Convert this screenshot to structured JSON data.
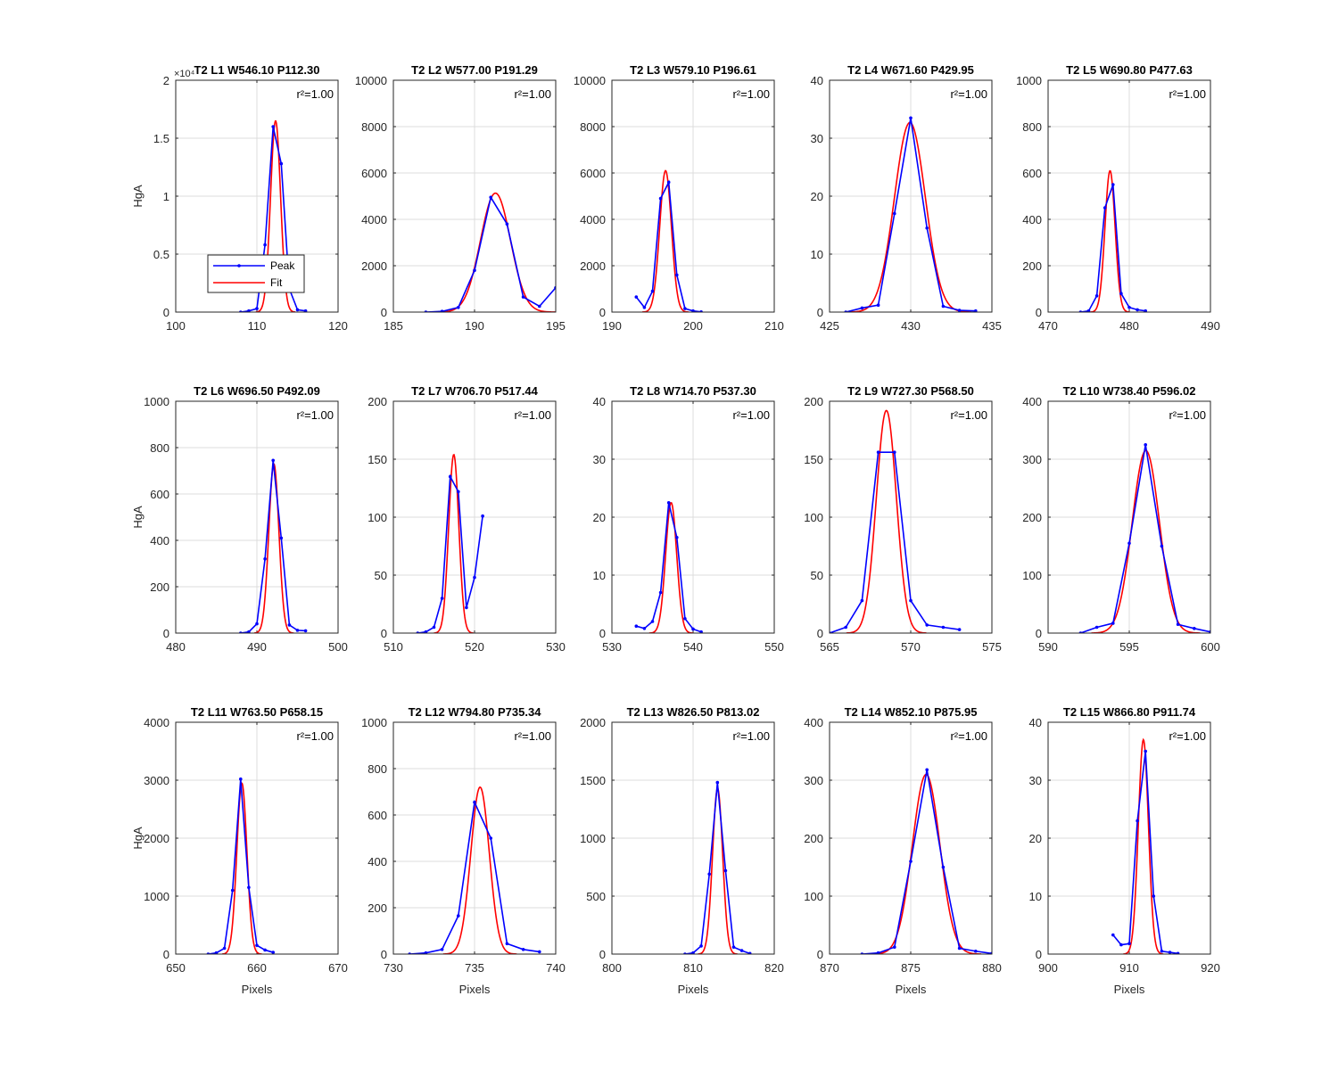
{
  "figure": {
    "background": "#ffffff"
  },
  "colors": {
    "peak": "#0000ff",
    "fit": "#ff0000",
    "grid": "#dcdcdc",
    "axes": "#262626"
  },
  "legend": {
    "entries": [
      "Peak",
      "Fit"
    ],
    "placement": "lower-left",
    "subplot": 0
  },
  "chart_data": [
    {
      "type": "line",
      "title": "T2 L1 W546.10 P112.30",
      "r2": "r²=1.00",
      "xlim": [
        100,
        120
      ],
      "ylim": [
        0,
        2
      ],
      "xticks": [
        100,
        110,
        120
      ],
      "yticks": [
        0,
        0.5,
        1,
        1.5,
        2
      ],
      "ytick_labels": [
        "0",
        "0.5",
        "1",
        "1.5",
        "2"
      ],
      "y_exponent": "×10⁴",
      "ylabel": "HgA",
      "xlabel": "",
      "peak": {
        "x": [
          108,
          109,
          110,
          111,
          112,
          113,
          114,
          115,
          116
        ],
        "y": [
          0,
          0.01,
          0.03,
          0.58,
          1.6,
          1.28,
          0.2,
          0.02,
          0.01
        ]
      },
      "fit": {
        "mu": 112.3,
        "sigma": 0.62,
        "amp": 1.65
      }
    },
    {
      "type": "line",
      "title": "T2 L2 W577.00 P191.29",
      "r2": "r²=1.00",
      "xlim": [
        185,
        195
      ],
      "ylim": [
        0,
        10000
      ],
      "xticks": [
        185,
        190,
        195
      ],
      "yticks": [
        0,
        2000,
        4000,
        6000,
        8000,
        10000
      ],
      "ytick_labels": [
        "0",
        "2000",
        "4000",
        "6000",
        "8000",
        "10000"
      ],
      "ylabel": "",
      "xlabel": "",
      "peak": {
        "x": [
          187,
          188,
          189,
          190,
          191,
          192,
          193,
          194,
          195
        ],
        "y": [
          0,
          30,
          200,
          1800,
          4950,
          3800,
          650,
          250,
          1050
        ]
      },
      "fit": {
        "mu": 191.29,
        "sigma": 0.92,
        "amp": 5130
      }
    },
    {
      "type": "line",
      "title": "T2 L3 W579.10 P196.61",
      "r2": "r²=1.00",
      "xlim": [
        190,
        210
      ],
      "ylim": [
        0,
        10000
      ],
      "xticks": [
        190,
        200,
        210
      ],
      "yticks": [
        0,
        2000,
        4000,
        6000,
        8000,
        10000
      ],
      "ytick_labels": [
        "0",
        "2000",
        "4000",
        "6000",
        "8000",
        "10000"
      ],
      "ylabel": "",
      "xlabel": "",
      "peak": {
        "x": [
          193,
          194,
          195,
          196,
          197,
          198,
          199,
          200,
          201
        ],
        "y": [
          650,
          200,
          900,
          4900,
          5600,
          1600,
          150,
          50,
          10
        ]
      },
      "fit": {
        "mu": 196.61,
        "sigma": 0.72,
        "amp": 6100
      }
    },
    {
      "type": "line",
      "title": "T2 L4 W671.60 P429.95",
      "r2": "r²=1.00",
      "xlim": [
        425,
        435
      ],
      "ylim": [
        0,
        40
      ],
      "xticks": [
        425,
        430,
        435
      ],
      "yticks": [
        0,
        10,
        20,
        30,
        40
      ],
      "ytick_labels": [
        "0",
        "10",
        "20",
        "30",
        "40"
      ],
      "ylabel": "",
      "xlabel": "",
      "peak": {
        "x": [
          426,
          427,
          428,
          429,
          430,
          431,
          432,
          433,
          434
        ],
        "y": [
          0,
          0.7,
          1.2,
          17,
          33.5,
          14.5,
          1.0,
          0.3,
          0.2
        ]
      },
      "fit": {
        "mu": 429.95,
        "sigma": 0.95,
        "amp": 32.7
      }
    },
    {
      "type": "line",
      "title": "T2 L5 W690.80 P477.63",
      "r2": "r²=1.00",
      "xlim": [
        470,
        490
      ],
      "ylim": [
        0,
        1000
      ],
      "xticks": [
        470,
        480,
        490
      ],
      "yticks": [
        0,
        200,
        400,
        600,
        800,
        1000
      ],
      "ytick_labels": [
        "0",
        "200",
        "400",
        "600",
        "800",
        "1000"
      ],
      "ylabel": "",
      "xlabel": "",
      "peak": {
        "x": [
          474,
          475,
          476,
          477,
          478,
          479,
          480,
          481,
          482
        ],
        "y": [
          0,
          5,
          70,
          450,
          550,
          80,
          20,
          10,
          5
        ]
      },
      "fit": {
        "mu": 477.63,
        "sigma": 0.62,
        "amp": 610
      }
    },
    {
      "type": "line",
      "title": "T2 L6 W696.50 P492.09",
      "r2": "r²=1.00",
      "xlim": [
        480,
        500
      ],
      "ylim": [
        0,
        1000
      ],
      "xticks": [
        480,
        490,
        500
      ],
      "yticks": [
        0,
        200,
        400,
        600,
        800,
        1000
      ],
      "ytick_labels": [
        "0",
        "200",
        "400",
        "600",
        "800",
        "1000"
      ],
      "ylabel": "HgA",
      "xlabel": "",
      "peak": {
        "x": [
          488,
          489,
          490,
          491,
          492,
          493,
          494,
          495,
          496
        ],
        "y": [
          0,
          5,
          40,
          320,
          745,
          410,
          35,
          12,
          10
        ]
      },
      "fit": {
        "mu": 492.09,
        "sigma": 0.62,
        "amp": 730
      }
    },
    {
      "type": "line",
      "title": "T2 L7 W706.70 P517.44",
      "r2": "r²=1.00",
      "xlim": [
        510,
        530
      ],
      "ylim": [
        0,
        200
      ],
      "xticks": [
        510,
        520,
        530
      ],
      "yticks": [
        0,
        50,
        100,
        150,
        200
      ],
      "ytick_labels": [
        "0",
        "50",
        "100",
        "150",
        "200"
      ],
      "ylabel": "",
      "xlabel": "",
      "peak": {
        "x": [
          513,
          514,
          515,
          516,
          517,
          518,
          519,
          520,
          521
        ],
        "y": [
          0,
          1,
          5,
          30,
          135,
          122,
          22,
          48,
          101
        ]
      },
      "fit": {
        "mu": 517.44,
        "sigma": 0.62,
        "amp": 154
      }
    },
    {
      "type": "line",
      "title": "T2 L8 W714.70 P537.30",
      "r2": "r²=1.00",
      "xlim": [
        530,
        550
      ],
      "ylim": [
        0,
        40
      ],
      "xticks": [
        530,
        540,
        550
      ],
      "yticks": [
        0,
        10,
        20,
        30,
        40
      ],
      "ytick_labels": [
        "0",
        "10",
        "20",
        "30",
        "40"
      ],
      "ylabel": "",
      "xlabel": "",
      "peak": {
        "x": [
          533,
          534,
          535,
          536,
          537,
          538,
          539,
          540,
          541
        ],
        "y": [
          1.2,
          0.8,
          2,
          7,
          22.5,
          16.5,
          2.5,
          0.7,
          0.2
        ]
      },
      "fit": {
        "mu": 537.3,
        "sigma": 0.68,
        "amp": 22.5
      }
    },
    {
      "type": "line",
      "title": "T2 L9 W727.30 P568.50",
      "r2": "r²=1.00",
      "xlim": [
        565,
        575
      ],
      "ylim": [
        0,
        200
      ],
      "xticks": [
        565,
        570,
        575
      ],
      "yticks": [
        0,
        50,
        100,
        150,
        200
      ],
      "ytick_labels": [
        "0",
        "50",
        "100",
        "150",
        "200"
      ],
      "ylabel": "",
      "xlabel": "",
      "peak": {
        "x": [
          565,
          566,
          567,
          568,
          569,
          570,
          571,
          572,
          573
        ],
        "y": [
          0,
          5,
          28,
          156,
          156,
          28,
          7,
          5,
          3
        ]
      },
      "fit": {
        "mu": 568.5,
        "sigma": 0.62,
        "amp": 192
      }
    },
    {
      "type": "line",
      "title": "T2 L10 W738.40 P596.02",
      "r2": "r²=1.00",
      "xlim": [
        590,
        600
      ],
      "ylim": [
        0,
        400
      ],
      "xticks": [
        590,
        595,
        600
      ],
      "yticks": [
        0,
        100,
        200,
        300,
        400
      ],
      "ytick_labels": [
        "0",
        "100",
        "200",
        "300",
        "400"
      ],
      "ylabel": "",
      "xlabel": "",
      "peak": {
        "x": [
          592,
          593,
          594,
          595,
          596,
          597,
          598,
          599,
          600
        ],
        "y": [
          0,
          10,
          17,
          155,
          325,
          150,
          15,
          8,
          2
        ]
      },
      "fit": {
        "mu": 596.02,
        "sigma": 0.84,
        "amp": 315
      }
    },
    {
      "type": "line",
      "title": "T2 L11 W763.50 P658.15",
      "r2": "r²=1.00",
      "xlim": [
        650,
        670
      ],
      "ylim": [
        0,
        4000
      ],
      "xticks": [
        650,
        660,
        670
      ],
      "yticks": [
        0,
        1000,
        2000,
        3000,
        4000
      ],
      "ytick_labels": [
        "0",
        "1000",
        "2000",
        "3000",
        "4000"
      ],
      "ylabel": "HgA",
      "xlabel": "Pixels",
      "peak": {
        "x": [
          654,
          655,
          656,
          657,
          658,
          659,
          660,
          661,
          662
        ],
        "y": [
          0,
          20,
          100,
          1100,
          3020,
          1150,
          150,
          70,
          30
        ]
      },
      "fit": {
        "mu": 658.15,
        "sigma": 0.62,
        "amp": 2950
      }
    },
    {
      "type": "line",
      "title": "T2 L12 W794.80 P735.34",
      "r2": "r²=1.00",
      "xlim": [
        730,
        740
      ],
      "ylim": [
        0,
        1000
      ],
      "xticks": [
        730,
        735,
        740
      ],
      "yticks": [
        0,
        200,
        400,
        600,
        800,
        1000
      ],
      "ytick_labels": [
        "0",
        "200",
        "400",
        "600",
        "800",
        "1000"
      ],
      "ylabel": "",
      "xlabel": "Pixels",
      "peak": {
        "x": [
          731,
          732,
          733,
          734,
          735,
          736,
          737,
          738,
          739
        ],
        "y": [
          0,
          5,
          20,
          165,
          655,
          500,
          45,
          20,
          10
        ]
      },
      "fit": {
        "mu": 735.34,
        "sigma": 0.57,
        "amp": 720
      }
    },
    {
      "type": "line",
      "title": "T2 L13 W826.50 P813.02",
      "r2": "r²=1.00",
      "xlim": [
        800,
        820
      ],
      "ylim": [
        0,
        2000
      ],
      "xticks": [
        800,
        810,
        820
      ],
      "yticks": [
        0,
        500,
        1000,
        1500,
        2000
      ],
      "ytick_labels": [
        "0",
        "500",
        "1000",
        "1500",
        "2000"
      ],
      "ylabel": "",
      "xlabel": "Pixels",
      "peak": {
        "x": [
          809,
          810,
          811,
          812,
          813,
          814,
          815,
          816,
          817
        ],
        "y": [
          0,
          10,
          70,
          690,
          1480,
          720,
          60,
          30,
          5
        ]
      },
      "fit": {
        "mu": 813.02,
        "sigma": 0.62,
        "amp": 1430
      }
    },
    {
      "type": "line",
      "title": "T2 L14 W852.10 P875.95",
      "r2": "r²=1.00",
      "xlim": [
        870,
        880
      ],
      "ylim": [
        0,
        400
      ],
      "xticks": [
        870,
        875,
        880
      ],
      "yticks": [
        0,
        100,
        200,
        300,
        400
      ],
      "ytick_labels": [
        "0",
        "100",
        "200",
        "300",
        "400"
      ],
      "ylabel": "",
      "xlabel": "Pixels",
      "peak": {
        "x": [
          872,
          873,
          874,
          875,
          876,
          877,
          878,
          879,
          880
        ],
        "y": [
          0,
          2,
          12,
          160,
          318,
          150,
          10,
          5,
          1
        ]
      },
      "fit": {
        "mu": 875.95,
        "sigma": 0.85,
        "amp": 310
      }
    },
    {
      "type": "line",
      "title": "T2 L15 W866.80 P911.74",
      "r2": "r²=1.00",
      "xlim": [
        900,
        920
      ],
      "ylim": [
        0,
        40
      ],
      "xticks": [
        900,
        910,
        920
      ],
      "yticks": [
        0,
        10,
        20,
        30,
        40
      ],
      "ytick_labels": [
        "0",
        "10",
        "20",
        "30",
        "40"
      ],
      "ylabel": "",
      "xlabel": "Pixels",
      "peak": {
        "x": [
          908,
          909,
          910,
          911,
          912,
          913,
          914,
          915,
          916
        ],
        "y": [
          3.3,
          1.6,
          1.8,
          23,
          35,
          10,
          0.5,
          0.3,
          0.1
        ]
      },
      "fit": {
        "mu": 911.74,
        "sigma": 0.62,
        "amp": 37
      }
    }
  ]
}
